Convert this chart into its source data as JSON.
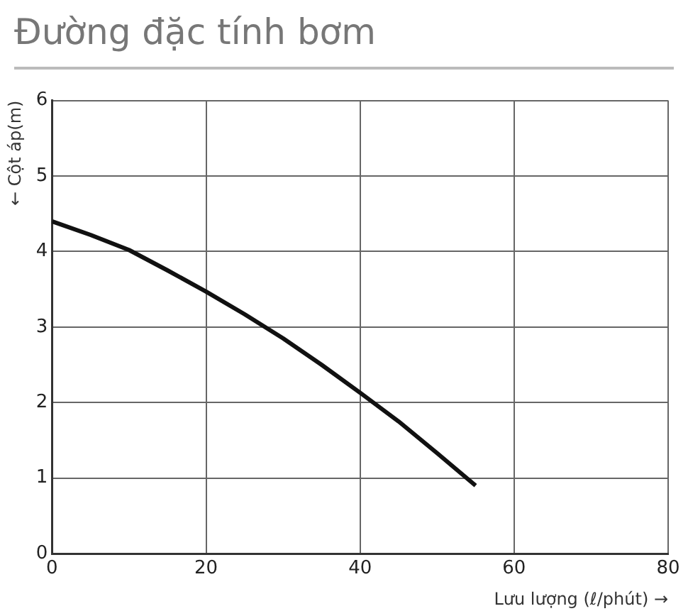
{
  "chart_data": {
    "type": "line",
    "title": "Đường đặc tính bơm",
    "xlabel": "Lưu lượng (ℓ/phút) →",
    "ylabel": "← Cột áp(m)",
    "x": [
      0,
      5,
      10,
      15,
      20,
      25,
      30,
      35,
      40,
      45,
      50,
      55
    ],
    "series": [
      {
        "color": "#111111",
        "values": [
          4.4,
          4.22,
          4.02,
          3.75,
          3.47,
          3.17,
          2.85,
          2.5,
          2.13,
          1.75,
          1.33,
          0.9
        ]
      }
    ],
    "xlim": [
      0,
      80
    ],
    "xticks": [
      0,
      20,
      40,
      60,
      80
    ],
    "ylim": [
      0,
      6
    ],
    "yticks": [
      0,
      1,
      2,
      3,
      4,
      5,
      6
    ],
    "grid": true,
    "marker": "none",
    "line_style": "solid"
  }
}
